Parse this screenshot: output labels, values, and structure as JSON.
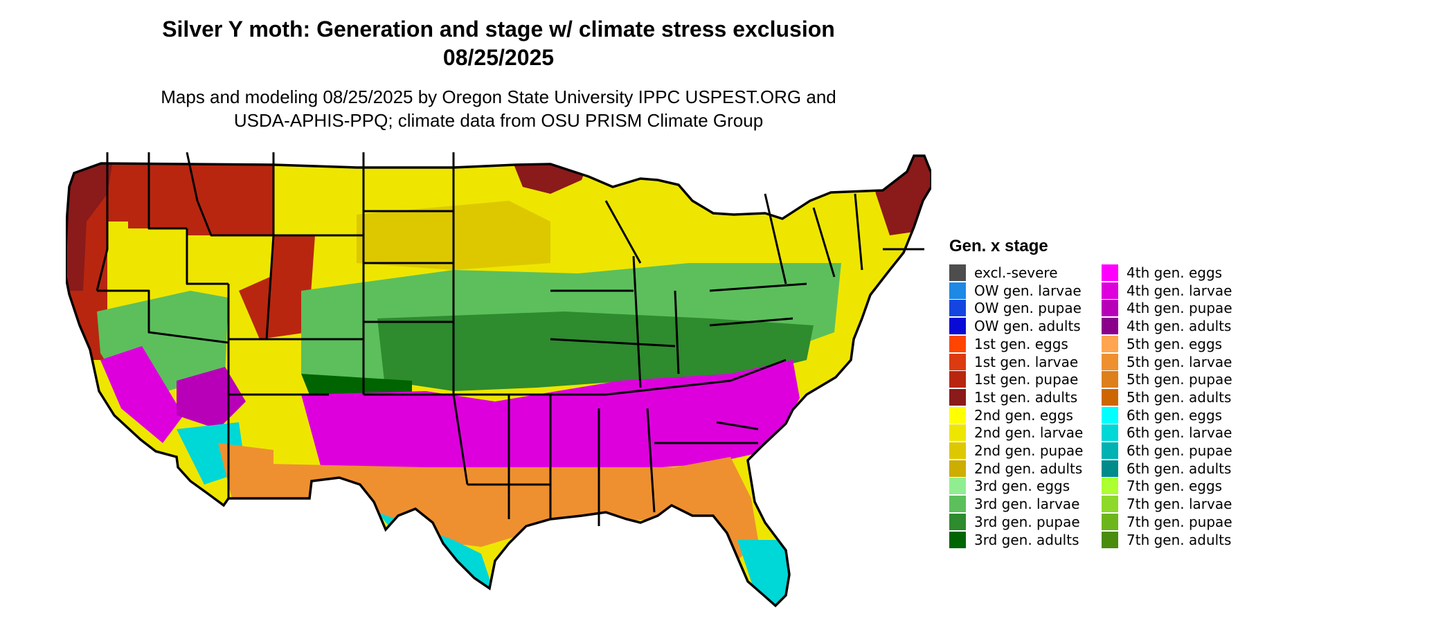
{
  "title_line1": "Silver Y moth: Generation and stage w/ climate stress exclusion",
  "title_line2": "08/25/2025",
  "subtitle_line1": "Maps and modeling 08/25/2025 by Oregon State University IPPC USPEST.ORG and",
  "subtitle_line2": "USDA-APHIS-PPQ; climate data from OSU PRISM Climate Group",
  "legend": {
    "title": "Gen. x stage",
    "items": [
      {
        "label": "excl.-severe",
        "color": "#4d4d4d"
      },
      {
        "label": "OW gen. larvae",
        "color": "#1e88e5"
      },
      {
        "label": "OW gen. pupae",
        "color": "#1545e0"
      },
      {
        "label": "OW gen. adults",
        "color": "#0a0ad6"
      },
      {
        "label": "1st gen. eggs",
        "color": "#ff4500"
      },
      {
        "label": "1st gen. larvae",
        "color": "#dc3a10"
      },
      {
        "label": "1st gen. pupae",
        "color": "#b8260f"
      },
      {
        "label": "1st gen. adults",
        "color": "#8b1a1a"
      },
      {
        "label": "2nd gen. eggs",
        "color": "#ffff00"
      },
      {
        "label": "2nd gen. larvae",
        "color": "#eee600"
      },
      {
        "label": "2nd gen. pupae",
        "color": "#ddc800"
      },
      {
        "label": "2nd gen. adults",
        "color": "#cdad00"
      },
      {
        "label": "3rd gen. eggs",
        "color": "#90ee90"
      },
      {
        "label": "3rd gen. larvae",
        "color": "#5cbf5c"
      },
      {
        "label": "3rd gen. pupae",
        "color": "#2e8b2e"
      },
      {
        "label": "3rd gen. adults",
        "color": "#006400"
      },
      {
        "label": "4th gen. eggs",
        "color": "#ff00ff"
      },
      {
        "label": "4th gen. larvae",
        "color": "#dd00dd"
      },
      {
        "label": "4th gen. pupae",
        "color": "#b800b8"
      },
      {
        "label": "4th gen. adults",
        "color": "#8b008b"
      },
      {
        "label": "5th gen. eggs",
        "color": "#ffa54f"
      },
      {
        "label": "5th gen. larvae",
        "color": "#ee9030"
      },
      {
        "label": "5th gen. pupae",
        "color": "#dd7f1a"
      },
      {
        "label": "5th gen. adults",
        "color": "#cd6600"
      },
      {
        "label": "6th gen. eggs",
        "color": "#00ffff"
      },
      {
        "label": "6th gen. larvae",
        "color": "#00d7d7"
      },
      {
        "label": "6th gen. pupae",
        "color": "#00b2b2"
      },
      {
        "label": "6th gen. adults",
        "color": "#008b8b"
      },
      {
        "label": "7th gen. eggs",
        "color": "#adff2f"
      },
      {
        "label": "7th gen. larvae",
        "color": "#8ed82a"
      },
      {
        "label": "7th gen. pupae",
        "color": "#6cb61c"
      },
      {
        "label": "7th gen. adults",
        "color": "#4a8c0c"
      }
    ]
  }
}
